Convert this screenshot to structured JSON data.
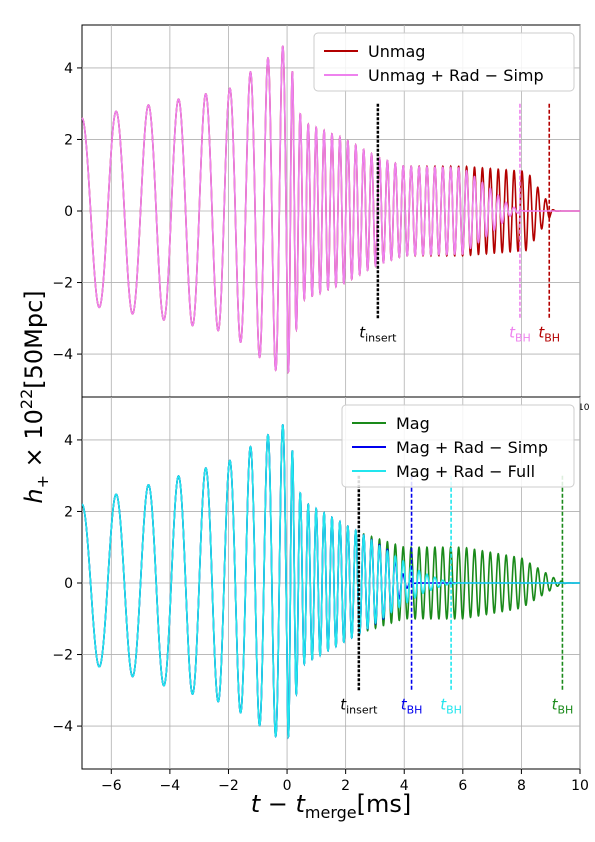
{
  "figure": {
    "ylabel_main": "h",
    "ylabel_sub": "+",
    "ylabel_rest": " × 10",
    "ylabel_exp": "22",
    "ylabel_unit": "[50Mpc]",
    "xlabel_main": "t − t",
    "xlabel_sub": "merge",
    "xlabel_unit": "[ms]",
    "stray_tick": "10",
    "shared_xlim": [
      -7,
      10
    ],
    "shared_xticks": [
      -6,
      -4,
      -2,
      0,
      2,
      4,
      6,
      8,
      10
    ],
    "grid": true
  },
  "chart_data": [
    {
      "type": "line",
      "panel": "top",
      "ylim": [
        -5.2,
        5.2
      ],
      "yticks": [
        -4,
        -2,
        0,
        2,
        4
      ],
      "legend_position": "top-right",
      "series": [
        {
          "name": "Unmag",
          "color": "#b30000",
          "t_start": -7.0,
          "t_bh": 8.95,
          "amp_env": [
            [
              -7,
              2.6
            ],
            [
              -2,
              3.4
            ],
            [
              0,
              4.7
            ],
            [
              0.5,
              2.5
            ],
            [
              2,
              2.0
            ],
            [
              3.1,
              1.5
            ],
            [
              4,
              1.25
            ],
            [
              6,
              1.25
            ],
            [
              8.2,
              1.1
            ],
            [
              8.9,
              0.25
            ],
            [
              9.2,
              0.02
            ]
          ],
          "color_key": "unmag"
        },
        {
          "name": "Unmag + Rad − Simp",
          "color": "#ee82ee",
          "t_start": -7.0,
          "t_bh": 7.95,
          "amp_env": [
            [
              -7,
              2.6
            ],
            [
              -2,
              3.4
            ],
            [
              0,
              4.7
            ],
            [
              0.5,
              2.5
            ],
            [
              2,
              2.0
            ],
            [
              3.1,
              1.5
            ],
            [
              4,
              1.25
            ],
            [
              6,
              1.2
            ],
            [
              7,
              0.6
            ],
            [
              7.6,
              0.15
            ],
            [
              8.0,
              0.02
            ]
          ],
          "color_key": "radsimp"
        }
      ],
      "markers": [
        {
          "label_main": "t",
          "label_sub": "insert",
          "t": 3.1,
          "color": "#000000"
        },
        {
          "label_main": "t",
          "label_sub": "BH",
          "t": 7.95,
          "color": "#ee82ee"
        },
        {
          "label_main": "t",
          "label_sub": "BH",
          "t": 8.95,
          "color": "#b30000"
        }
      ]
    },
    {
      "type": "line",
      "panel": "bottom",
      "ylim": [
        -5.2,
        5.2
      ],
      "yticks": [
        -4,
        -2,
        0,
        2,
        4
      ],
      "legend_position": "top-right",
      "series": [
        {
          "name": "Mag",
          "color": "#1a8a1a",
          "t_start": -7.0,
          "t_bh": 9.4,
          "amp_env": [
            [
              -7,
              2.2
            ],
            [
              -2,
              3.4
            ],
            [
              0,
              4.5
            ],
            [
              0.5,
              2.3
            ],
            [
              2.5,
              1.4
            ],
            [
              4,
              1.0
            ],
            [
              6,
              1.0
            ],
            [
              8,
              0.7
            ],
            [
              9.2,
              0.1
            ],
            [
              9.5,
              0.02
            ]
          ]
        },
        {
          "name": "Mag + Rad − Simp",
          "color": "#0000ee",
          "t_start": -7.0,
          "t_bh": 4.25,
          "amp_env": [
            [
              -7,
              2.2
            ],
            [
              -2,
              3.4
            ],
            [
              0,
              4.5
            ],
            [
              0.5,
              2.3
            ],
            [
              2.5,
              1.4
            ],
            [
              3.5,
              0.9
            ],
            [
              4.0,
              0.2
            ],
            [
              4.3,
              0.02
            ]
          ]
        },
        {
          "name": "Mag + Rad − Full",
          "color": "#22e5ee",
          "t_start": -7.0,
          "t_bh": 5.6,
          "amp_env": [
            [
              -7,
              2.2
            ],
            [
              -2,
              3.4
            ],
            [
              0,
              4.5
            ],
            [
              0.5,
              2.3
            ],
            [
              2.5,
              1.4
            ],
            [
              3.6,
              0.8
            ],
            [
              4.6,
              0.3
            ],
            [
              5.4,
              0.05
            ]
          ]
        }
      ],
      "markers": [
        {
          "label_main": "t",
          "label_sub": "insert",
          "t": 2.45,
          "color": "#000000"
        },
        {
          "label_main": "t",
          "label_sub": "BH",
          "t": 4.25,
          "color": "#0000ee"
        },
        {
          "label_main": "t",
          "label_sub": "BH",
          "t": 5.6,
          "color": "#22e5ee"
        },
        {
          "label_main": "t",
          "label_sub": "BH",
          "t": 9.4,
          "color": "#1a8a1a"
        }
      ]
    }
  ]
}
